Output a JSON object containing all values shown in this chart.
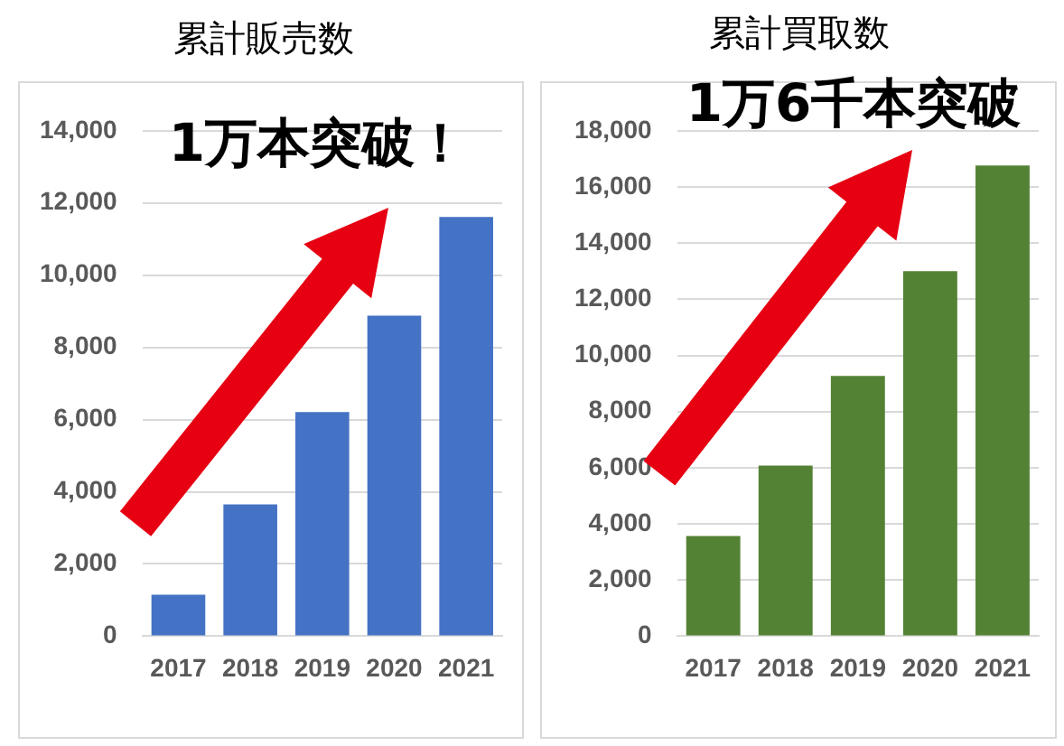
{
  "chart_data": [
    {
      "type": "bar",
      "title": "累計販売数",
      "annotations": [
        "1万本突破！"
      ],
      "categories": [
        "2017",
        "2018",
        "2019",
        "2020",
        "2021"
      ],
      "values": [
        1150,
        3650,
        6210,
        8880,
        11610
      ],
      "color": "#4472c4",
      "ylim": [
        0,
        14000
      ],
      "yticks": [
        {
          "value": 0,
          "label": "0"
        },
        {
          "value": 2000,
          "label": "2,000"
        },
        {
          "value": 4000,
          "label": "4,000"
        },
        {
          "value": 6000,
          "label": "6,000"
        },
        {
          "value": 8000,
          "label": "8,000"
        },
        {
          "value": 10000,
          "label": "10,000"
        },
        {
          "value": 12000,
          "label": "12,000"
        },
        {
          "value": 14000,
          "label": "14,000"
        }
      ],
      "grid": "y",
      "legend": false
    },
    {
      "type": "bar",
      "title": "累計買取数",
      "annotations": [
        "1万6千本突破"
      ],
      "categories": [
        "2017",
        "2018",
        "2019",
        "2020",
        "2021"
      ],
      "values": [
        3570,
        6080,
        9270,
        13000,
        16760
      ],
      "color": "#548235",
      "ylim": [
        0,
        18000
      ],
      "yticks": [
        {
          "value": 0,
          "label": "0"
        },
        {
          "value": 2000,
          "label": "2,000"
        },
        {
          "value": 4000,
          "label": "4,000"
        },
        {
          "value": 6000,
          "label": "6,000"
        },
        {
          "value": 8000,
          "label": "8,000"
        },
        {
          "value": 10000,
          "label": "10,000"
        },
        {
          "value": 12000,
          "label": "12,000"
        },
        {
          "value": 14000,
          "label": "14,000"
        },
        {
          "value": 16000,
          "label": "16,000"
        },
        {
          "value": 18000,
          "label": "18,000"
        }
      ],
      "grid": "y",
      "legend": false
    }
  ]
}
